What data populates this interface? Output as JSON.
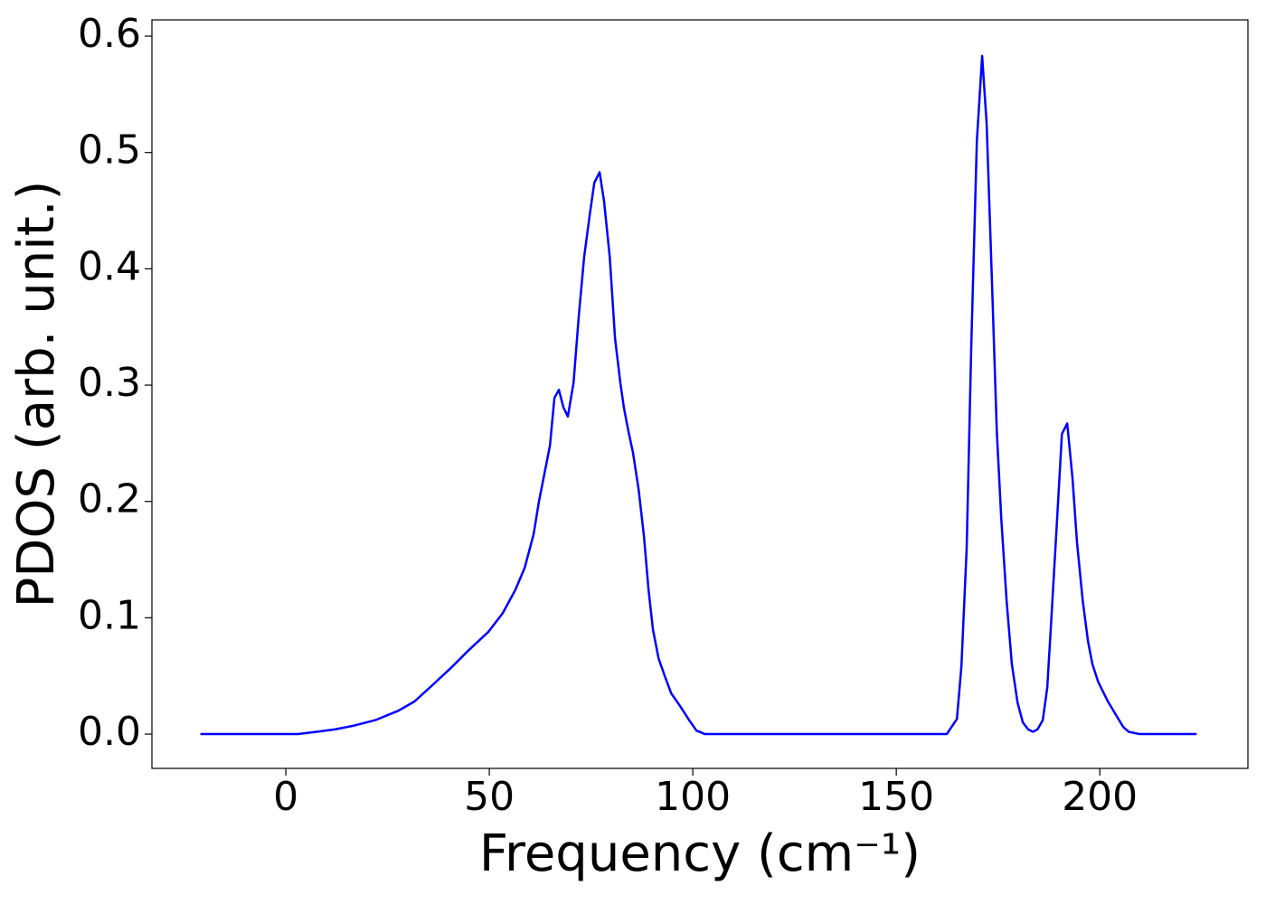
{
  "chart_data": {
    "type": "line",
    "xlabel": "Frequency (cm⁻¹)",
    "ylabel": "PDOS (arb. unit.)",
    "x": [
      -21,
      0,
      3,
      7.6,
      12,
      16.4,
      22,
      27.6,
      31.6,
      36,
      40.9,
      44.9,
      49.8,
      53.3,
      56.4,
      58.7,
      60.9,
      62.2,
      64.9,
      66,
      67.1,
      68.2,
      69.3,
      70.7,
      72,
      73.3,
      74.7,
      75.8,
      77.1,
      78.2,
      79.6,
      80.9,
      82.2,
      83.1,
      84.2,
      85.3,
      86.7,
      88,
      89.1,
      90.2,
      91.6,
      93.1,
      94.7,
      96.9,
      99.1,
      100.9,
      103,
      162.4,
      164.9,
      166,
      167.3,
      168.4,
      169.8,
      171.1,
      172.2,
      173.5,
      174.7,
      175.8,
      177.1,
      178.4,
      179.8,
      181.1,
      182.4,
      183.6,
      184.7,
      186,
      187.1,
      188.2,
      189.6,
      190.7,
      192,
      193.3,
      194.4,
      195.8,
      197.1,
      198.2,
      199.6,
      202,
      204.4,
      205.8,
      207.1,
      209.8,
      223.8
    ],
    "series": [
      {
        "name": "PDOS",
        "color": "#0000ff",
        "values": [
          0,
          0,
          0,
          0.002,
          0.004,
          0.007,
          0.012,
          0.02,
          0.028,
          0.042,
          0.058,
          0.072,
          0.088,
          0.104,
          0.124,
          0.143,
          0.172,
          0.2,
          0.248,
          0.289,
          0.296,
          0.281,
          0.273,
          0.302,
          0.36,
          0.41,
          0.447,
          0.474,
          0.483,
          0.458,
          0.41,
          0.34,
          0.302,
          0.28,
          0.26,
          0.242,
          0.21,
          0.17,
          0.125,
          0.09,
          0.065,
          0.05,
          0.035,
          0.024,
          0.012,
          0.003,
          0,
          0,
          0.013,
          0.058,
          0.16,
          0.33,
          0.51,
          0.583,
          0.525,
          0.39,
          0.26,
          0.185,
          0.115,
          0.06,
          0.027,
          0.01,
          0.004,
          0.002,
          0.004,
          0.012,
          0.04,
          0.105,
          0.19,
          0.258,
          0.267,
          0.22,
          0.165,
          0.115,
          0.08,
          0.06,
          0.045,
          0.028,
          0.014,
          0.006,
          0.002,
          0,
          0
        ]
      }
    ],
    "xlim": [
      -32.9,
      236.4
    ],
    "ylim": [
      -0.0295,
      0.614
    ],
    "xticks": [
      0,
      50,
      100,
      150,
      200
    ],
    "yticks": [
      {
        "value": 0,
        "label": "0.0"
      },
      0.1,
      0.2,
      0.3,
      0.4,
      0.5,
      0.6
    ]
  }
}
